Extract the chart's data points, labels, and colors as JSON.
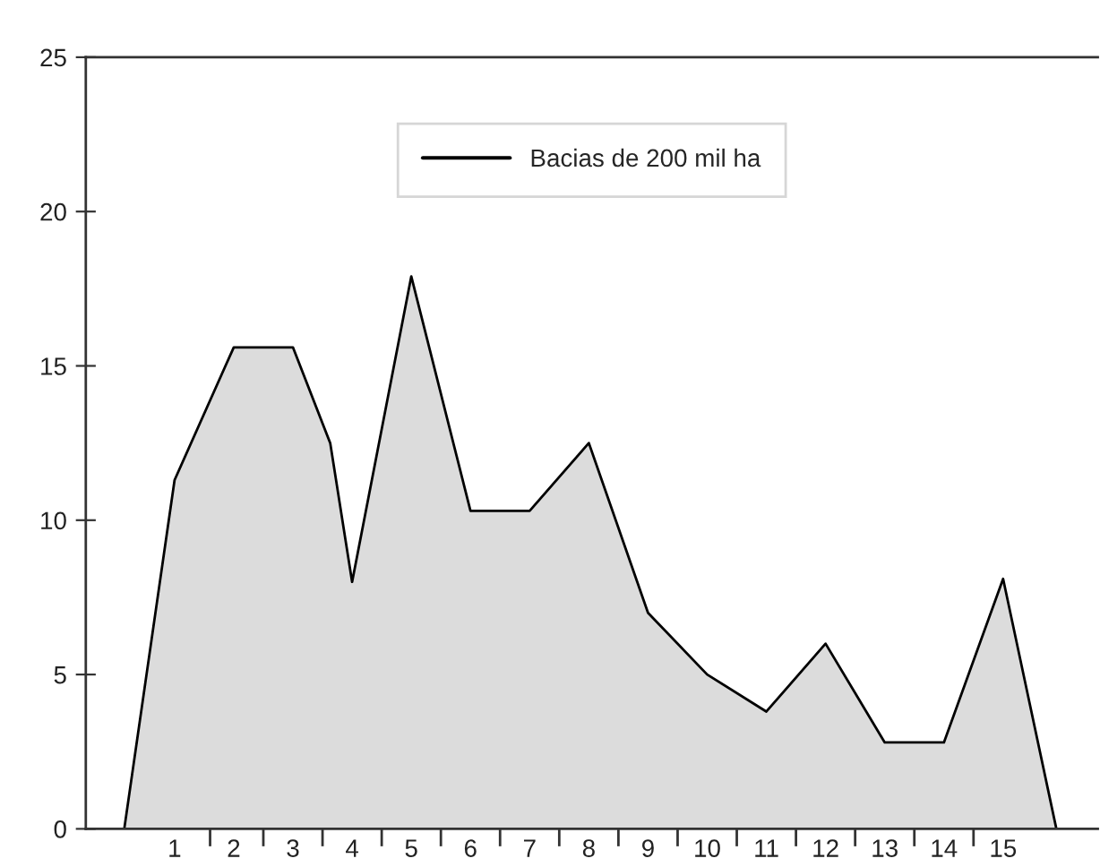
{
  "chart_data": {
    "type": "area",
    "x": [
      0.15,
      1,
      2,
      3,
      3.63,
      4,
      5,
      6,
      7,
      8,
      9,
      10,
      11,
      12,
      13,
      14,
      15,
      15.9
    ],
    "series": [
      {
        "name": "Bacias de 200 mil ha",
        "color": "#dcdcdc",
        "values": [
          0,
          11.3,
          15.6,
          15.6,
          12.5,
          8,
          17.9,
          10.3,
          10.3,
          12.5,
          7,
          5,
          3.8,
          6,
          2.8,
          2.8,
          8.1,
          0
        ]
      }
    ],
    "xlim": [
      -0.5,
      16.6
    ],
    "xticks": [
      {
        "value": 1,
        "label": "1"
      },
      {
        "value": 1.6,
        "label": null
      },
      {
        "value": 2,
        "label": "2"
      },
      {
        "value": 2.5,
        "label": null
      },
      {
        "value": 3,
        "label": "3"
      },
      {
        "value": 3.5,
        "label": null
      },
      {
        "value": 4,
        "label": "4"
      },
      {
        "value": 4.5,
        "label": null
      },
      {
        "value": 5,
        "label": "5"
      },
      {
        "value": 5.5,
        "label": null
      },
      {
        "value": 6,
        "label": "6"
      },
      {
        "value": 6.5,
        "label": null
      },
      {
        "value": 7,
        "label": "7"
      },
      {
        "value": 7.5,
        "label": null
      },
      {
        "value": 8,
        "label": "8"
      },
      {
        "value": 8.5,
        "label": null
      },
      {
        "value": 9,
        "label": "9"
      },
      {
        "value": 9.5,
        "label": null
      },
      {
        "value": 10,
        "label": "10"
      },
      {
        "value": 10.5,
        "label": null
      },
      {
        "value": 11,
        "label": "11"
      },
      {
        "value": 11.5,
        "label": null
      },
      {
        "value": 12,
        "label": "12"
      },
      {
        "value": 12.5,
        "label": null
      },
      {
        "value": 13,
        "label": "13"
      },
      {
        "value": 13.5,
        "label": null
      },
      {
        "value": 14,
        "label": "14"
      },
      {
        "value": 14.5,
        "label": null
      },
      {
        "value": 15,
        "label": "15"
      }
    ],
    "ylim": [
      0,
      25
    ],
    "yticks": [
      0,
      5,
      10,
      15,
      20,
      25
    ],
    "legend": "top",
    "grid": false
  }
}
